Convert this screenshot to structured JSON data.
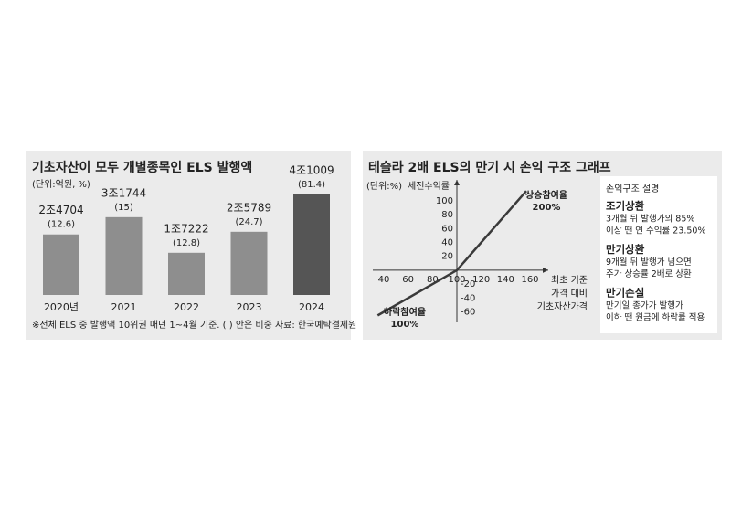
{
  "chart_data": [
    {
      "type": "bar",
      "title": "기초자산이 모두 개별종목인 ELS 발행액",
      "subtitle": "(단위:억원, %)",
      "categories": [
        "2020년",
        "2021",
        "2022",
        "2023",
        "2024"
      ],
      "values": [
        24704,
        31744,
        17222,
        25789,
        41009
      ],
      "value_labels": [
        "2조4704",
        "3조1744",
        "1조7222",
        "2조5789",
        "4조1009"
      ],
      "shares": [
        12.6,
        15,
        12.8,
        24.7,
        81.4
      ],
      "share_labels": [
        "(12.6)",
        "(15)",
        "(12.8)",
        "(24.7)",
        "(81.4)"
      ],
      "colors": [
        "#8e8e8e",
        "#8e8e8e",
        "#8e8e8e",
        "#8e8e8e",
        "#555555"
      ],
      "footnote": "※전체 ELS 중 발행액 10위권 매년 1~4월 기준. ( ) 안은 비중  자료: 한국예탁결제원"
    },
    {
      "type": "line",
      "title": "테슬라 2배 ELS의 만기 시 손익 구조 그래프",
      "unit": "(단위:%)",
      "y_label": "세전수익률",
      "x_label": [
        "최초 기준",
        "가격 대비",
        "기초자산가격"
      ],
      "x": [
        35,
        100,
        157
      ],
      "series": [
        {
          "color": "#3a3a3a",
          "values": [
            -65,
            0,
            114
          ]
        }
      ],
      "xlim": [
        31,
        175
      ],
      "xticks": [
        40,
        60,
        80,
        100,
        120,
        140,
        160
      ],
      "ylim": [
        -75,
        130
      ],
      "yticks": [
        100,
        80,
        60,
        40,
        20,
        -20,
        -40,
        -60
      ],
      "annotations": [
        {
          "text": [
            "상승참여율",
            "200%"
          ]
        },
        {
          "text": [
            "하락참여율",
            "100%"
          ]
        }
      ],
      "panel": {
        "title": "손익구조 설명",
        "items": [
          {
            "title": "조기상환",
            "lines": [
              "3개월 뒤 발행가의 85%",
              "이상 땐 연 수익률 23.50%"
            ]
          },
          {
            "title": "만기상환",
            "lines": [
              "9개월 뒤 발행가 넘으면",
              "주가 상승률 2배로 상환"
            ]
          },
          {
            "title": "만기손실",
            "lines": [
              "만기일 종가가 발행가",
              "이하 땐 원금에 하락률 적용"
            ]
          }
        ]
      }
    }
  ]
}
